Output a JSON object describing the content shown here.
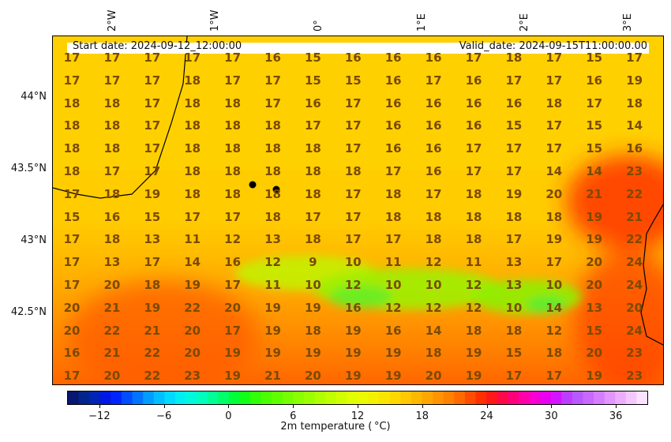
{
  "header": {
    "start": "Start date: 2024-09-12_12:00:00",
    "valid": "Valid_date: 2024-09-15T11:00:00.00"
  },
  "lon_labels": [
    "2°W",
    "1°W",
    "0°",
    "1°E",
    "2°E",
    "3°E"
  ],
  "lat_labels": [
    "44°N",
    "43.5°N",
    "43°N",
    "42.5°N"
  ],
  "colorbar": {
    "title": "2m temperature ($^\\circ$C)",
    "title_rendered": "2m temperature ( °C)",
    "ticks": [
      "−12",
      "−6",
      "0",
      "6",
      "12",
      "18",
      "24",
      "30",
      "36"
    ],
    "range": [
      -15,
      39
    ]
  },
  "grid": [
    [
      "17",
      "17",
      "17",
      "17",
      "17",
      "16",
      "15",
      "16",
      "16",
      "16",
      "17",
      "18",
      "17",
      "15",
      "17"
    ],
    [
      "17",
      "17",
      "17",
      "18",
      "17",
      "17",
      "15",
      "15",
      "16",
      "17",
      "16",
      "17",
      "17",
      "16",
      "19"
    ],
    [
      "18",
      "18",
      "17",
      "18",
      "18",
      "17",
      "16",
      "17",
      "16",
      "16",
      "16",
      "16",
      "18",
      "17",
      "18"
    ],
    [
      "18",
      "18",
      "17",
      "18",
      "18",
      "18",
      "17",
      "17",
      "16",
      "16",
      "16",
      "15",
      "17",
      "15",
      "14"
    ],
    [
      "18",
      "18",
      "17",
      "18",
      "18",
      "18",
      "18",
      "17",
      "16",
      "16",
      "17",
      "17",
      "17",
      "15",
      "16"
    ],
    [
      "18",
      "17",
      "17",
      "18",
      "18",
      "18",
      "18",
      "18",
      "17",
      "16",
      "17",
      "17",
      "14",
      "14",
      "23"
    ],
    [
      "17",
      "18",
      "19",
      "18",
      "18",
      "18",
      "18",
      "17",
      "18",
      "17",
      "18",
      "19",
      "20",
      "21",
      "22"
    ],
    [
      "15",
      "16",
      "15",
      "17",
      "17",
      "18",
      "17",
      "17",
      "18",
      "18",
      "18",
      "18",
      "18",
      "19",
      "21"
    ],
    [
      "17",
      "18",
      "13",
      "11",
      "12",
      "13",
      "18",
      "17",
      "17",
      "18",
      "18",
      "17",
      "19",
      "19",
      "22"
    ],
    [
      "17",
      "13",
      "17",
      "14",
      "16",
      "12",
      "9",
      "10",
      "11",
      "12",
      "11",
      "13",
      "17",
      "20",
      "24"
    ],
    [
      "17",
      "20",
      "18",
      "19",
      "17",
      "11",
      "10",
      "12",
      "10",
      "10",
      "12",
      "13",
      "10",
      "20",
      "24"
    ],
    [
      "20",
      "21",
      "19",
      "22",
      "20",
      "19",
      "19",
      "16",
      "12",
      "12",
      "12",
      "10",
      "14",
      "13",
      "20"
    ],
    [
      "20",
      "22",
      "21",
      "20",
      "17",
      "19",
      "18",
      "19",
      "16",
      "14",
      "18",
      "18",
      "12",
      "15",
      "24"
    ],
    [
      "16",
      "21",
      "22",
      "20",
      "19",
      "19",
      "19",
      "19",
      "19",
      "18",
      "19",
      "15",
      "18",
      "20",
      "23"
    ],
    [
      "17",
      "20",
      "22",
      "23",
      "19",
      "21",
      "20",
      "19",
      "19",
      "20",
      "19",
      "17",
      "17",
      "19",
      "23"
    ]
  ],
  "markers": [
    "city-dot",
    "city-dot"
  ]
}
